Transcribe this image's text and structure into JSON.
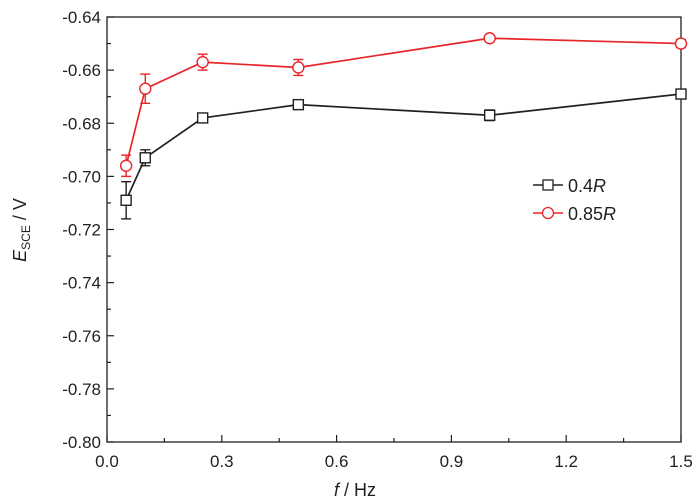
{
  "chart_data": {
    "type": "line",
    "title": "",
    "xlabel": "f / Hz",
    "ylabel": "E_SCE / V",
    "xlabel_parts": {
      "var": "f",
      "unit": " / Hz"
    },
    "ylabel_parts": {
      "var": "E",
      "sub": "SCE",
      "unit": " / V"
    },
    "xlim": [
      0.0,
      1.5
    ],
    "ylim": [
      -0.8,
      -0.64
    ],
    "x_ticks": [
      "0.0",
      "0.3",
      "0.6",
      "0.9",
      "1.2",
      "1.5"
    ],
    "y_ticks": [
      "-0.64",
      "-0.66",
      "-0.68",
      "-0.70",
      "-0.72",
      "-0.74",
      "-0.76",
      "-0.78",
      "-0.80"
    ],
    "grid": false,
    "legend_position": "right-middle",
    "x": [
      0.05,
      0.1,
      0.25,
      0.5,
      1.0,
      1.5
    ],
    "series": [
      {
        "name": "0.4R",
        "label_num": "0.4",
        "label_var": "R",
        "color": "#231f20",
        "marker": "square",
        "values": [
          -0.709,
          -0.693,
          -0.678,
          -0.673,
          -0.677,
          -0.669
        ],
        "errors": [
          0.007,
          0.003,
          0.0015,
          0.0005,
          0.002,
          0.0015
        ]
      },
      {
        "name": "0.85R",
        "label_num": "0.85",
        "label_var": "R",
        "color": "#e8262a",
        "marker": "circle",
        "values": [
          -0.696,
          -0.667,
          -0.657,
          -0.659,
          -0.648,
          -0.65
        ],
        "errors": [
          0.004,
          0.0055,
          0.003,
          0.003,
          0.001,
          0.0015
        ]
      }
    ]
  }
}
